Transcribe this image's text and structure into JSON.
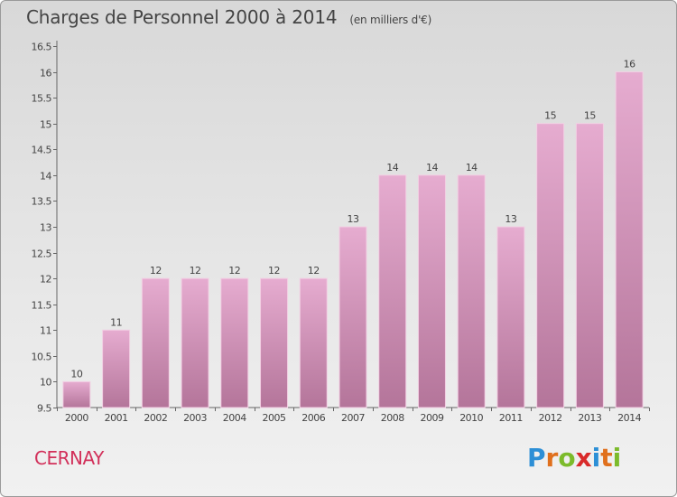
{
  "header": {
    "title": "Charges de Personnel 2000 à 2014",
    "subtitle": "(en milliers d'€)"
  },
  "footer": {
    "commune": "CERNAY",
    "logo_text": "Proxiti",
    "logo_letters": [
      "P",
      "r",
      "o",
      "x",
      "i",
      "t",
      "i"
    ],
    "logo_colors": [
      "#2d8fd6",
      "#e0701d",
      "#7cbb2b",
      "#d92a2a",
      "#2d8fd6",
      "#e0701d",
      "#7cbb2b"
    ]
  },
  "chart_data": {
    "type": "bar",
    "categories": [
      "2000",
      "2001",
      "2002",
      "2003",
      "2004",
      "2005",
      "2006",
      "2007",
      "2008",
      "2009",
      "2010",
      "2011",
      "2012",
      "2013",
      "2014"
    ],
    "values": [
      10,
      11,
      12,
      12,
      12,
      12,
      12,
      13,
      14,
      14,
      14,
      13,
      15,
      15,
      16
    ],
    "data_labels": [
      "10",
      "11",
      "12",
      "12",
      "12",
      "12",
      "12",
      "13",
      "14",
      "14",
      "14",
      "13",
      "15",
      "15",
      "16"
    ],
    "ylim": [
      9.5,
      16.5
    ],
    "yticks": [
      9.5,
      10,
      10.5,
      11,
      11.5,
      12,
      12.5,
      13,
      13.5,
      14,
      14.5,
      15,
      15.5,
      16,
      16.5
    ],
    "ytick_labels": [
      "9.5",
      "10",
      "10.5",
      "11",
      "11.5",
      "12",
      "12.5",
      "13",
      "13.5",
      "14",
      "14.5",
      "15",
      "15.5",
      "16",
      "16.5"
    ],
    "grid": false,
    "legend": "none",
    "colors": {
      "bar_top": "#e6acd0",
      "bar_bottom": "#b4759a",
      "bar_edge": "#f2cfe3"
    }
  }
}
